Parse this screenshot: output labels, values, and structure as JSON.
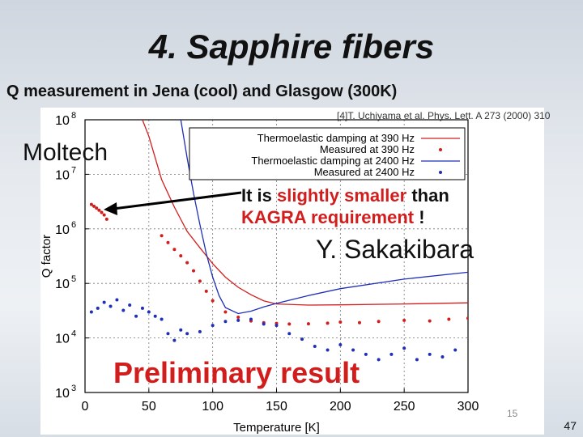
{
  "slide": {
    "title": "4. Sapphire fibers",
    "subtitle": "Q measurement in Jena (cool) and Glasgow (300K)",
    "moltech_label": "Moltech",
    "annotation_prefix": "It is ",
    "annotation_highlight_1": "slightly smaller",
    "annotation_middle": " than",
    "annotation_highlight_2": "KAGRA requirement",
    "annotation_suffix": " !",
    "author": "Y. Sakakibara",
    "preliminary": "Preliminary result",
    "inner_page_number": "15",
    "page_number": "47",
    "reference": "[4]T. Uchiyama et al. Phys. Lett. A 273 (2000) 310"
  },
  "colors": {
    "red": "#d21d1d",
    "blue": "#1f2fb8",
    "arrow": "#000000"
  },
  "chart_data": {
    "type": "scatter",
    "xlabel": "Temperature [K]",
    "ylabel": "Q factor",
    "x_ticks": [
      0,
      50,
      100,
      150,
      200,
      250,
      300
    ],
    "x_tick_labels": [
      "0",
      "50",
      "100",
      "150",
      "200",
      "250",
      "300"
    ],
    "y_log_exponents": [
      3,
      4,
      5,
      6,
      7,
      8
    ],
    "y_tick_labels": [
      "10",
      "10",
      "10",
      "10",
      "10",
      "10"
    ],
    "y_tick_superscripts": [
      "3",
      "4",
      "5",
      "6",
      "7",
      "8"
    ],
    "xlim": [
      0,
      300
    ],
    "ylim_log10": [
      3,
      8
    ],
    "grid": true,
    "legend_position": "top-right",
    "series": [
      {
        "name": "Thermoelastic damping at 390 Hz",
        "style": "line",
        "color": "#d21d1d",
        "x": [
          45,
          50,
          55,
          60,
          70,
          80,
          90,
          100,
          110,
          120,
          130,
          140,
          150,
          175,
          200,
          250,
          300
        ],
        "y": [
          100000000,
          50000000,
          20000000,
          8000000,
          2500000,
          900000,
          450000,
          230000,
          130000,
          85000,
          62000,
          48000,
          42000,
          40000,
          40500,
          42000,
          44000
        ]
      },
      {
        "name": "Measured at 390 Hz",
        "style": "points",
        "color": "#d21d1d",
        "x": [
          5,
          7,
          9,
          11,
          13,
          15,
          17,
          60,
          65,
          70,
          75,
          80,
          85,
          90,
          95,
          100,
          110,
          120,
          130,
          140,
          150,
          160,
          175,
          190,
          200,
          215,
          230,
          250,
          270,
          285,
          300
        ],
        "y": [
          2800000,
          2600000,
          2400000,
          2200000,
          2000000,
          1800000,
          1500000,
          750000,
          560000,
          420000,
          320000,
          240000,
          170000,
          110000,
          72000,
          48000,
          30000,
          24000,
          20500,
          19000,
          18500,
          18000,
          18200,
          18600,
          19500,
          19000,
          20000,
          21000,
          20500,
          22000,
          23000
        ]
      },
      {
        "name": "Thermoelastic damping at 2400 Hz",
        "style": "line",
        "color": "#1f2fb8",
        "x": [
          75,
          80,
          85,
          90,
          95,
          100,
          105,
          110,
          120,
          130,
          140,
          150,
          175,
          200,
          250,
          300
        ],
        "y": [
          100000000,
          20000000,
          4500000,
          1200000,
          350000,
          130000,
          60000,
          36000,
          28000,
          31000,
          37000,
          43000,
          60000,
          80000,
          120000,
          160000
        ]
      },
      {
        "name": "Measured at 2400 Hz",
        "style": "points",
        "color": "#1f2fb8",
        "x": [
          5,
          10,
          15,
          20,
          25,
          30,
          35,
          40,
          45,
          50,
          55,
          60,
          65,
          70,
          75,
          80,
          90,
          100,
          110,
          120,
          130,
          140,
          150,
          160,
          170,
          180,
          190,
          200,
          210,
          220,
          230,
          240,
          250,
          260,
          270,
          280,
          290
        ],
        "y": [
          30000,
          35000,
          45000,
          38000,
          50000,
          32000,
          40000,
          25000,
          35000,
          30000,
          25000,
          22000,
          12000,
          9000,
          14000,
          12000,
          13000,
          17000,
          20000,
          21000,
          22000,
          18000,
          17000,
          12000,
          9500,
          7000,
          6000,
          7500,
          6000,
          5000,
          4000,
          5000,
          6500,
          4000,
          5000,
          4500,
          6000
        ]
      }
    ]
  }
}
